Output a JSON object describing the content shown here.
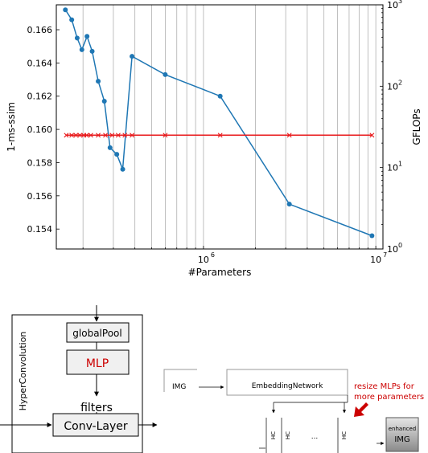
{
  "chart_data": {
    "type": "line",
    "xlabel": "#Parameters",
    "ylabel": "1-ms-ssim",
    "y2label": "GFLOPs",
    "xscale": "log",
    "xlim": [
      140000,
      11000000
    ],
    "ylim": [
      0.1528,
      0.1675
    ],
    "y2scale": "log",
    "y2lim": [
      1,
      1000
    ],
    "grid": "vertical",
    "x_tick_labels": [
      "10",
      "10"
    ],
    "x_tick_exponents": [
      "6",
      "7"
    ],
    "y_ticks": [
      0.154,
      0.156,
      0.158,
      0.16,
      0.162,
      0.164,
      0.166
    ],
    "y_tick_labels": [
      "0.154",
      "0.156",
      "0.158",
      "0.160",
      "0.162",
      "0.164",
      "0.166"
    ],
    "y2_tick_labels": [
      "10",
      "10",
      "10",
      "10"
    ],
    "y2_tick_exponents": [
      "0",
      "1",
      "2",
      "3"
    ],
    "series": [
      {
        "axis": "left",
        "color": "#1f77b4",
        "marker": "circle",
        "x": [
          158000,
          172000,
          185000,
          197000,
          211000,
          226000,
          245000,
          266000,
          287000,
          314000,
          340000,
          385000,
          600000,
          1250000,
          3150000,
          9500000
        ],
        "y": [
          0.1672,
          0.1666,
          0.1655,
          0.1648,
          0.1656,
          0.1647,
          0.1629,
          0.1617,
          0.1589,
          0.1585,
          0.1576,
          0.1644,
          0.1633,
          0.162,
          0.1555,
          0.1536
        ]
      },
      {
        "axis": "right",
        "color": "#e8191b",
        "marker": "x",
        "x": [
          160000,
          172000,
          182000,
          192000,
          202000,
          210000,
          222000,
          245000,
          270000,
          295000,
          320000,
          350000,
          385000,
          600000,
          1250000,
          3150000,
          9500000
        ],
        "y": [
          25,
          25,
          25,
          25,
          25,
          25,
          25,
          25,
          25,
          25,
          25,
          25,
          25,
          25,
          25,
          25,
          25
        ]
      }
    ]
  },
  "diagram": {
    "hyperconv_title": "HyperConvolution",
    "global_pool": "globalPool",
    "mlp": "MLP",
    "filters": "filters",
    "conv_layer": "Conv-Layer",
    "img": "IMG",
    "embedding_network": "EmbeddingNetwork",
    "resize_note_line1": "resize MLPs for",
    "resize_note_line2": "more parameters",
    "hc_label": "HC",
    "ellipsis": "...",
    "enhanced_line1": "enhanced",
    "enhanced_line2": "IMG",
    "accent_color": "#cc0000"
  }
}
